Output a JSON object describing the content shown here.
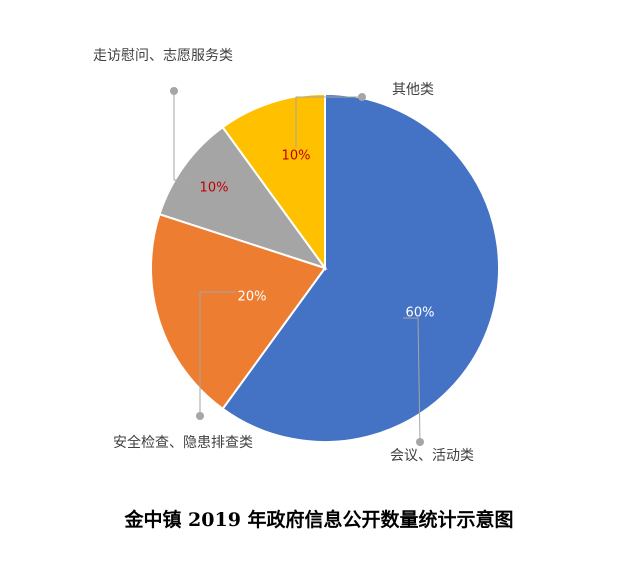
{
  "chart_data": {
    "type": "pie",
    "title": "金中镇 2019 年政府信息公开数量统计示意图",
    "start_angle_deg": 0,
    "direction": "clockwise",
    "slices": [
      {
        "label": "会议、活动类",
        "value": 60,
        "display": "60%",
        "color": "#4472C4",
        "label_color": "#FFFFFF"
      },
      {
        "label": "安全检查、隐患排查类",
        "value": 20,
        "display": "20%",
        "color": "#ED7D31",
        "label_color": "#FFFFFF"
      },
      {
        "label": "走访慰问、志愿服务类",
        "value": 10,
        "display": "10%",
        "color": "#A5A5A5",
        "label_color": "#C00000"
      },
      {
        "label": "其他类",
        "value": 10,
        "display": "10%",
        "color": "#FFC000",
        "label_color": "#C00000"
      }
    ],
    "leader_line_color": "#A6A6A6",
    "legend": "none"
  }
}
